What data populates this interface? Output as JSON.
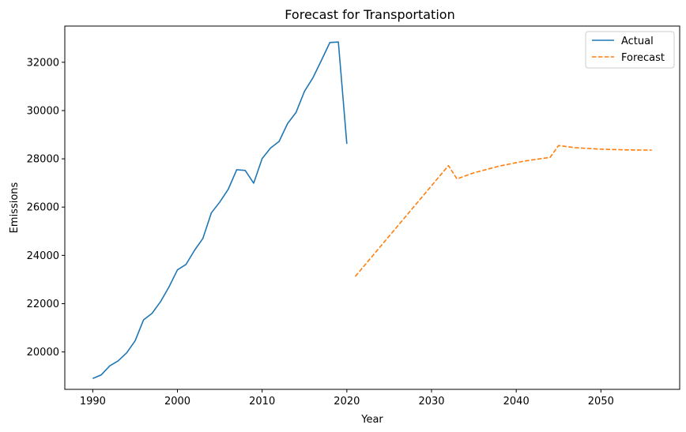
{
  "chart_data": {
    "type": "line",
    "title": "Forecast for Transportation",
    "xlabel": "Year",
    "ylabel": "Emissions",
    "xlim": [
      1986.7,
      2059.3
    ],
    "ylim": [
      18450,
      33500
    ],
    "xticks": [
      1990,
      2000,
      2010,
      2020,
      2030,
      2040,
      2050
    ],
    "xtick_labels": [
      "1990",
      "2000",
      "2010",
      "2020",
      "2030",
      "2040",
      "2050"
    ],
    "yticks": [
      20000,
      22000,
      24000,
      26000,
      28000,
      30000,
      32000
    ],
    "ytick_labels": [
      "20000",
      "22000",
      "24000",
      "26000",
      "28000",
      "30000",
      "32000"
    ],
    "grid": false,
    "legend_position": "top-right",
    "series": [
      {
        "name": "Actual",
        "color": "#1f77b4",
        "style": "solid",
        "x": [
          1990,
          1991,
          1992,
          1993,
          1994,
          1995,
          1996,
          1997,
          1998,
          1999,
          2000,
          2001,
          2002,
          2003,
          2004,
          2005,
          2006,
          2007,
          2008,
          2009,
          2010,
          2011,
          2012,
          2013,
          2014,
          2015,
          2016,
          2017,
          2018,
          2019,
          2020
        ],
        "y": [
          18900,
          19050,
          19420,
          19630,
          19960,
          20460,
          21330,
          21600,
          22080,
          22690,
          23400,
          23620,
          24200,
          24700,
          25760,
          26210,
          26740,
          27550,
          27520,
          26990,
          28010,
          28450,
          28720,
          29460,
          29920,
          30800,
          31360,
          32080,
          32820,
          32840,
          28620
        ]
      },
      {
        "name": "Forecast",
        "color": "#ff7f0e",
        "style": "dashed",
        "x": [
          2021,
          2032,
          2033,
          2035,
          2038,
          2041,
          2044,
          2045,
          2047,
          2050,
          2053,
          2056
        ],
        "y": [
          23130,
          27720,
          27170,
          27420,
          27700,
          27910,
          28060,
          28550,
          28460,
          28400,
          28370,
          28360
        ]
      }
    ]
  }
}
